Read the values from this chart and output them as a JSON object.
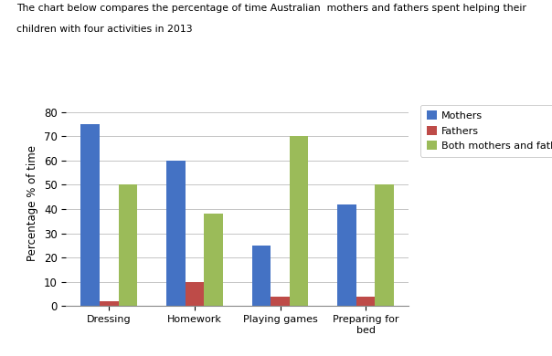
{
  "title_line1": "The chart below compares the percentage of time Australian  mothers and fathers spent helping their",
  "title_line2": "children with four activities in 2013",
  "categories": [
    "Dressing",
    "Homework",
    "Playing games",
    "Preparing for\nbed"
  ],
  "mothers": [
    75,
    60,
    25,
    42
  ],
  "fathers": [
    2,
    10,
    4,
    4
  ],
  "both": [
    50,
    38,
    70,
    50
  ],
  "ylabel": "Percentage % of time",
  "ylim": [
    0,
    85
  ],
  "yticks": [
    0,
    10,
    20,
    30,
    40,
    50,
    60,
    70,
    80
  ],
  "legend_labels": [
    "Mothers",
    "Fathers",
    "Both mothers and fathers"
  ],
  "colors": {
    "mothers": "#4472C4",
    "fathers": "#BE4B48",
    "both": "#9BBB59"
  },
  "bar_width": 0.22,
  "background_color": "#FFFFFF",
  "grid_color": "#BBBBBB"
}
